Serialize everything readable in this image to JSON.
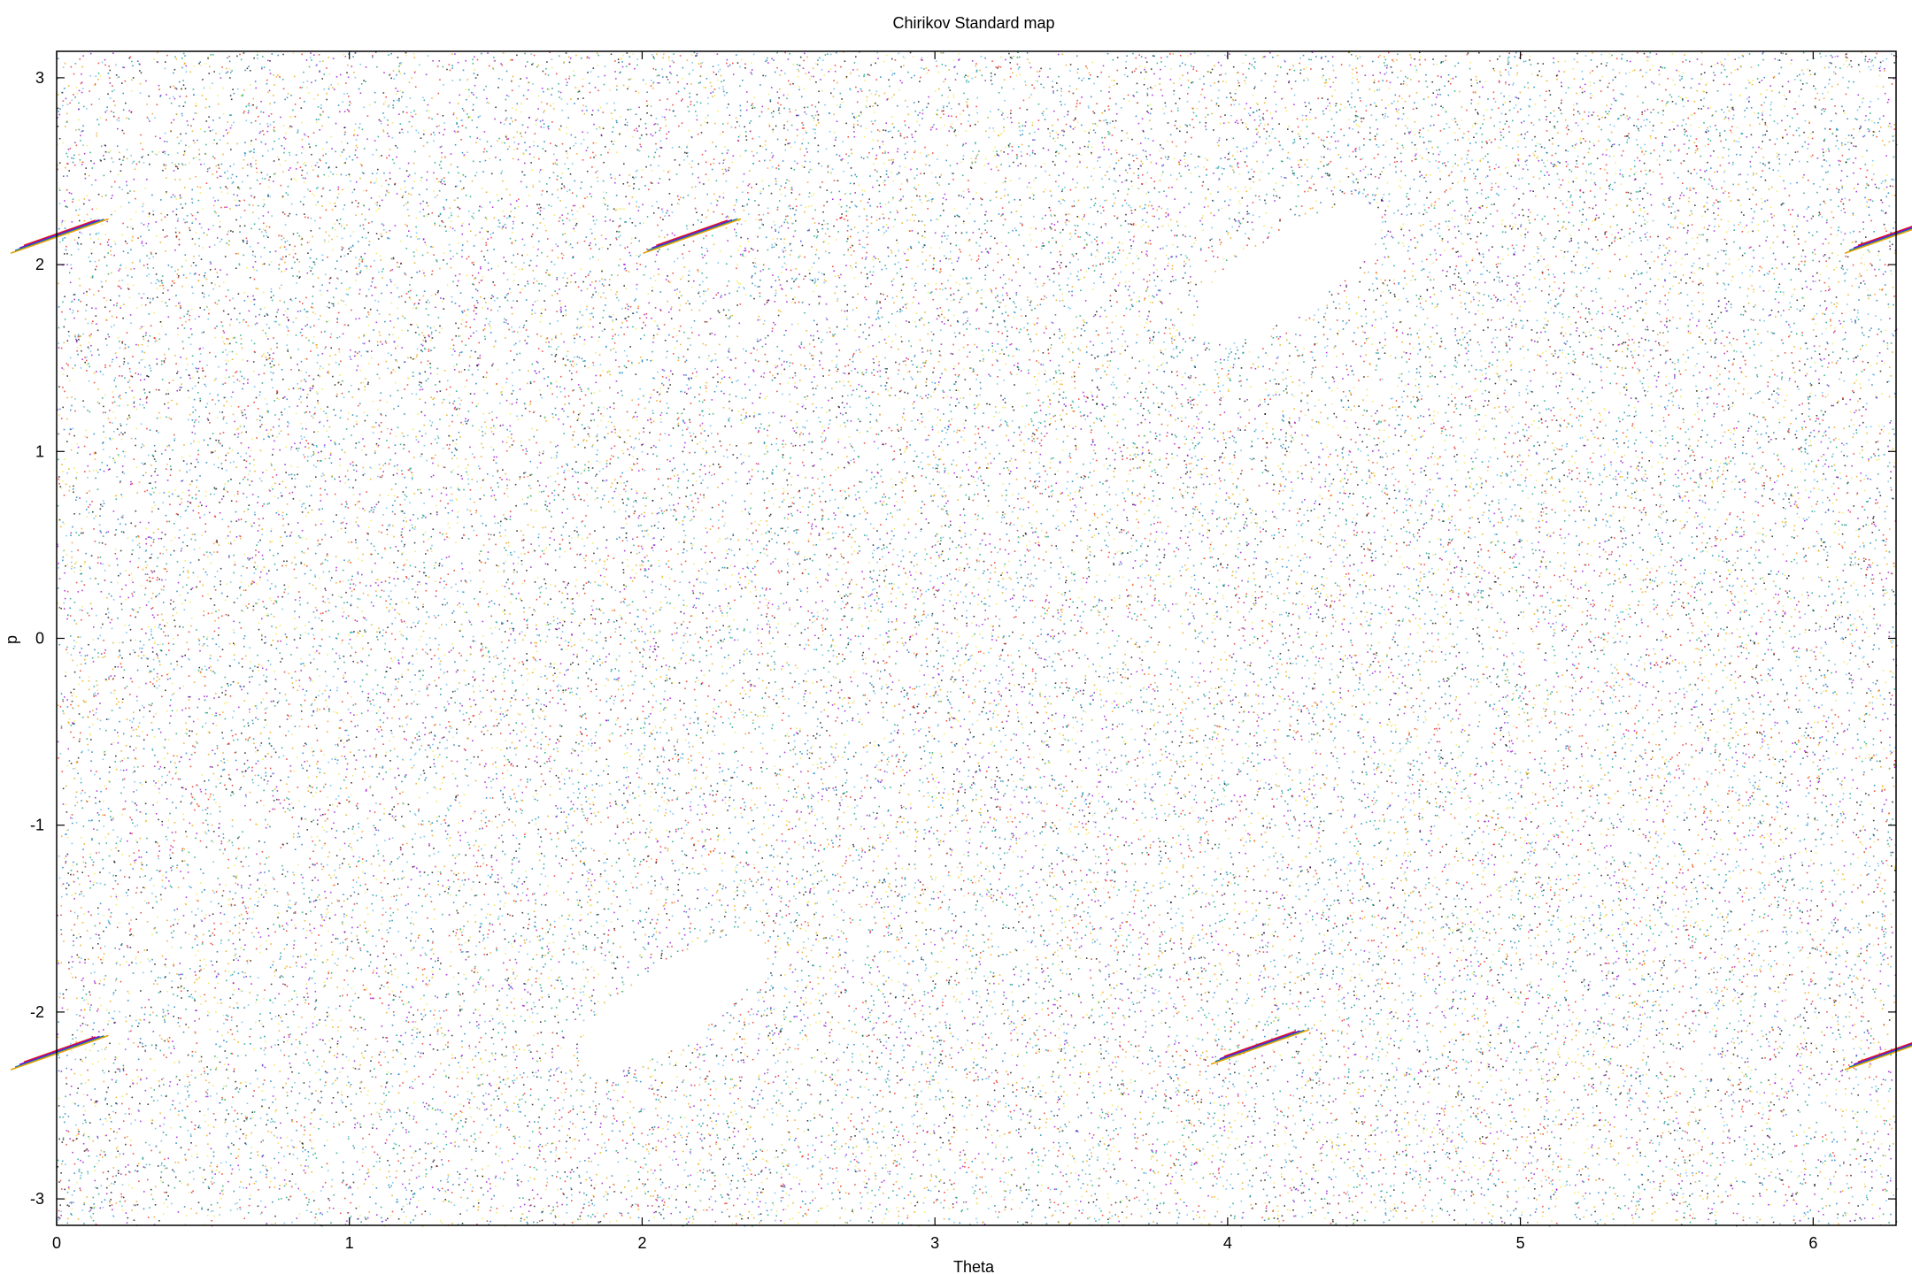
{
  "chart_data": {
    "type": "scatter",
    "title": "Chirikov Standard map",
    "xlabel": "Theta",
    "ylabel": "p",
    "xlim": [
      0,
      6.283185307
    ],
    "ylim": [
      -3.141592654,
      3.141592654
    ],
    "xticks": [
      0,
      1,
      2,
      3,
      4,
      5,
      6
    ],
    "yticks": [
      -3,
      -2,
      -1,
      0,
      1,
      2,
      3
    ],
    "grid": false,
    "legend": "none",
    "palette": [
      "#9400d3",
      "#009e73",
      "#56b4e9",
      "#e69f00",
      "#f0e442",
      "#0072b2",
      "#e51e10",
      "#000000"
    ],
    "clusters": [
      {
        "x": 2.17,
        "y": 2.17
      },
      {
        "x": 4.11,
        "y": -2.17
      },
      {
        "x": 0.01,
        "y": 2.17
      },
      {
        "x": 0.01,
        "y": -2.2
      },
      {
        "x": 6.275,
        "y": 2.17
      },
      {
        "x": 6.275,
        "y": -2.2
      }
    ],
    "islands": [
      {
        "x": 4.2,
        "y": 1.95
      },
      {
        "x": 2.1,
        "y": -1.95
      }
    ]
  }
}
